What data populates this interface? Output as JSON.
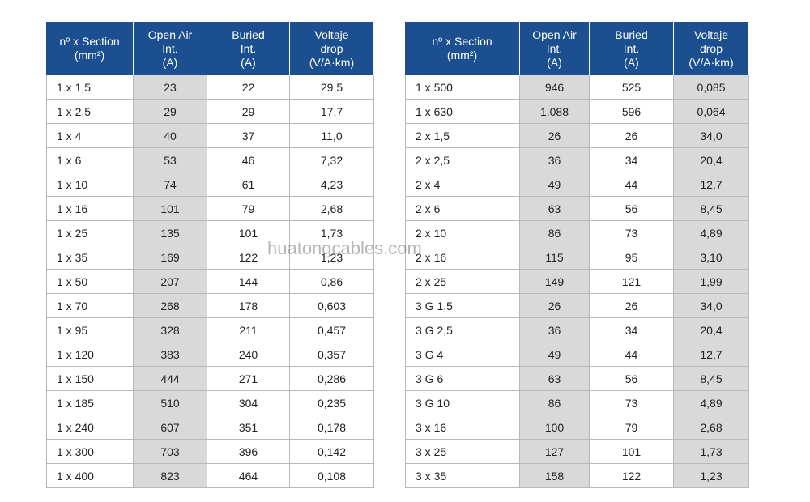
{
  "tables": [
    {
      "header": [
        "nº x Section\n(mm²)",
        "Open Air\nInt.\n(A)",
        "Buried\nInt.\n(A)",
        "Voltaje\ndrop\n(V/A·km)"
      ],
      "rows": [
        [
          "1 x 1,5",
          "23",
          "22",
          "29,5"
        ],
        [
          "1 x 2,5",
          "29",
          "29",
          "17,7"
        ],
        [
          "1 x 4",
          "40",
          "37",
          "11,0"
        ],
        [
          "1 x 6",
          "53",
          "46",
          "7,32"
        ],
        [
          "1 x 10",
          "74",
          "61",
          "4,23"
        ],
        [
          "1 x 16",
          "101",
          "79",
          "2,68"
        ],
        [
          "1 x 25",
          "135",
          "101",
          "1,73"
        ],
        [
          "1 x 35",
          "169",
          "122",
          "1,23"
        ],
        [
          "1 x 50",
          "207",
          "144",
          "0,86"
        ],
        [
          "1 x 70",
          "268",
          "178",
          "0,603"
        ],
        [
          "1 x 95",
          "328",
          "211",
          "0,457"
        ],
        [
          "1 x 120",
          "383",
          "240",
          "0,357"
        ],
        [
          "1 x 150",
          "444",
          "271",
          "0,286"
        ],
        [
          "1 x 185",
          "510",
          "304",
          "0,235"
        ],
        [
          "1 x 240",
          "607",
          "351",
          "0,178"
        ],
        [
          "1 x 300",
          "703",
          "396",
          "0,142"
        ],
        [
          "1 x 400",
          "823",
          "464",
          "0,108"
        ]
      ]
    },
    {
      "header": [
        "nº x Section\n(mm²)",
        "Open Air\nInt.\n(A)",
        "Buried\nInt.\n(A)",
        "Voltaje\ndrop\n(V/A·km)"
      ],
      "rows": [
        [
          "1 x 500",
          "946",
          "525",
          "0,085"
        ],
        [
          "1 x 630",
          "1.088",
          "596",
          "0,064"
        ],
        [
          "2 x 1,5",
          "26",
          "26",
          "34,0"
        ],
        [
          "2 x 2,5",
          "36",
          "34",
          "20,4"
        ],
        [
          "2 x 4",
          "49",
          "44",
          "12,7"
        ],
        [
          "2 x 6",
          "63",
          "56",
          "8,45"
        ],
        [
          "2 x 10",
          "86",
          "73",
          "4,89"
        ],
        [
          "2 x 16",
          "115",
          "95",
          "3,10"
        ],
        [
          "2 x 25",
          "149",
          "121",
          "1,99"
        ],
        [
          "3 G 1,5",
          "26",
          "26",
          "34,0"
        ],
        [
          "3 G 2,5",
          "36",
          "34",
          "20,4"
        ],
        [
          "3 G 4",
          "49",
          "44",
          "12,7"
        ],
        [
          "3 G 6",
          "63",
          "56",
          "8,45"
        ],
        [
          "3 G 10",
          "86",
          "73",
          "4,89"
        ],
        [
          "3 x 16",
          "100",
          "79",
          "2,68"
        ],
        [
          "3 x 25",
          "127",
          "101",
          "1,73"
        ],
        [
          "3 x 35",
          "158",
          "122",
          "1,23"
        ]
      ]
    }
  ],
  "watermark": "huatongcables.com"
}
